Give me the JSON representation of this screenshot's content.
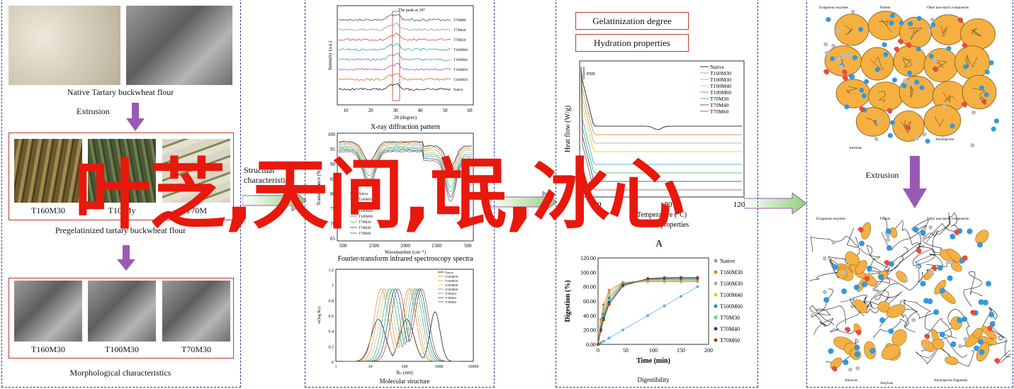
{
  "colors": {
    "panel_border": "#2b3a8c",
    "red_box": "#c0392b",
    "arrow_purple": "#9b59b6",
    "overlay_text": "#e8180c",
    "granule": "#f5b041",
    "dot_blue": "#3498db",
    "dot_red": "#e74c3c"
  },
  "panel1": {
    "native_caption": "Native Tartary buckwheat flour",
    "extrusion_label": "Extrusion",
    "photos": [
      "T160M30",
      "T10 My",
      "T70M"
    ],
    "photos_caption": "Pregelatinized tartary buckwheat flour",
    "sem": [
      "T160M30",
      "T100M30",
      "T70M30"
    ],
    "sem_caption": "Morphological characteristics"
  },
  "arrow1": {
    "label_line1": "Structual",
    "label_line2": "characteristics"
  },
  "overlay": {
    "text": "叶芝,天问,氓,冰心"
  },
  "panel2": {
    "xrd": {
      "title": "X-ray diffraction pattern",
      "note": "The peak at 30°",
      "xlabel": "2θ (degree)",
      "ylabel": "Intensity (a.u.)",
      "xticks": [
        "10",
        "20",
        "30",
        "40",
        "50",
        "60"
      ],
      "series": [
        "T70M80",
        "T70M40",
        "T70M30",
        "T100M60",
        "T100M40",
        "T100M30",
        "T160M30",
        "Native"
      ]
    },
    "ftir": {
      "title": "Fourier-transform infrared spectroscopy spectra",
      "xlabel": "Wavenumber (cm⁻¹)",
      "ylabel": "Transmittance (%)",
      "yticks": [
        "100",
        "95",
        "90",
        "85",
        "80",
        "75",
        "70",
        "65"
      ],
      "xticks": [
        "500",
        "2500",
        "2000",
        "1500",
        "500"
      ],
      "legend": [
        "Native",
        "T160M30",
        "T100M30",
        "T100M40",
        "T100M60",
        "T70M30",
        "T70M40",
        "T70M60"
      ]
    },
    "mw": {
      "title": "Molecular structure",
      "xlabel": "Rₕ (nm)",
      "ylabel": "w(log Rₕ)",
      "yticks": [
        "1.2",
        "1",
        "0.8",
        "0.6",
        "0.4",
        "0.2",
        "0"
      ],
      "xticks": [
        "1",
        "10",
        "100",
        "1000",
        "10000"
      ],
      "legend": [
        "Native",
        "T160M30",
        "T100M30",
        "T100M40",
        "T100M60",
        "T70M30",
        "T70M40",
        "T70M60"
      ]
    }
  },
  "panel3": {
    "box1": "Gelatinization degree",
    "box2": "Hydration properties",
    "dsc": {
      "title": "Thermal properties",
      "exo": "exo",
      "xlabel": "Temperature (°C)",
      "ylabel": "Heat flow (W/g)",
      "xticks": [
        "40",
        "80",
        "120"
      ],
      "legend": [
        "Native",
        "T160M30",
        "T100M30",
        "T100M40",
        "T100M60",
        "T70M30",
        "T70M40",
        "T70M60"
      ],
      "sub": "A"
    },
    "dig": {
      "title": "Digestibility",
      "xlabel": "Time (min)",
      "ylabel": "Digestion (%)",
      "yticks": [
        "120.00",
        "100.00",
        "80.00",
        "60.00",
        "40.00",
        "20.00",
        "0.00"
      ],
      "xticks": [
        "0",
        "50",
        "100",
        "150",
        "200"
      ],
      "legend": [
        "Native",
        "T160M30",
        "T100M30",
        "T100M40",
        "T100M60",
        "T70M30",
        "T70M40",
        "T70M60"
      ]
    }
  },
  "panel4": {
    "top_labels": {
      "enzymes": "Exogenous enzymes",
      "protein": "Protein",
      "other": "Other non-starch components",
      "amylose": "Amylose",
      "amylopectin": "Amylopectin"
    },
    "extrusion_label": "Extrusion",
    "bottom_labels": {
      "enzymes": "Exogenous enzymes",
      "protein": "Protein",
      "other": "Other non-starch components",
      "amylose": "Amylose",
      "amylose_frag": "Amylose",
      "amylopectin": "Amylopectin fragments"
    }
  }
}
